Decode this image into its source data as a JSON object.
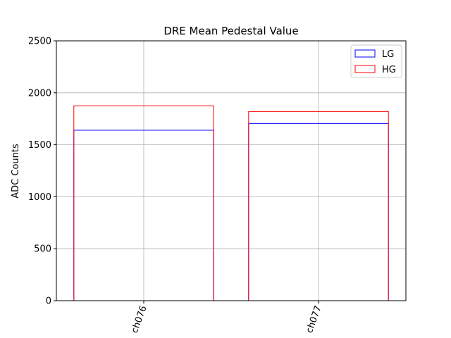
{
  "chart_data": {
    "type": "bar",
    "title": "DRE Mean Pedestal Value",
    "xlabel": "",
    "ylabel": "ADC Counts",
    "categories": [
      "ch076",
      "ch077"
    ],
    "series": [
      {
        "name": "LG",
        "values": [
          1640,
          1705
        ],
        "color": "#0000ff"
      },
      {
        "name": "HG",
        "values": [
          1875,
          1820
        ],
        "color": "#ff0000"
      }
    ],
    "ylim": [
      0,
      2500
    ],
    "yticks": [
      0,
      500,
      1000,
      1500,
      2000,
      2500
    ],
    "grid": true,
    "legend_position": "top-right",
    "bar_style": "outline",
    "xtick_rotation": "-70deg"
  }
}
